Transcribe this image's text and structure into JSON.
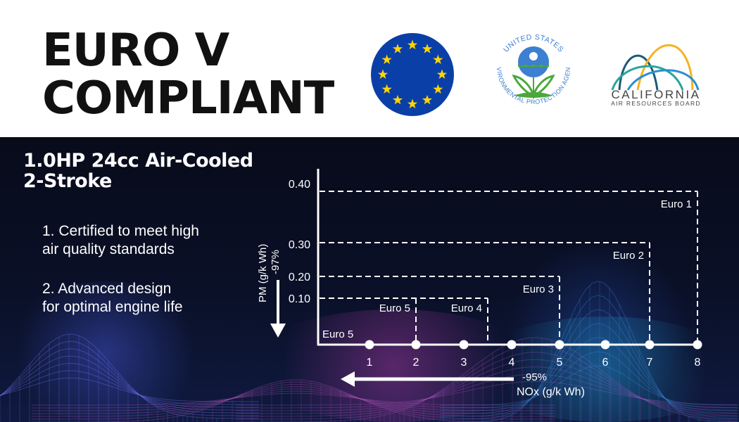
{
  "header": {
    "headline_line1": "EURO V",
    "headline_line2": "COMPLIANT",
    "logos": [
      {
        "name": "eu-flag-logo",
        "colors": {
          "blue": "#0b3fa8",
          "star": "#ffd400"
        }
      },
      {
        "name": "us-epa-logo",
        "text_top": "UNITED STATES",
        "text_bottom": "ENVIRONMENTAL PROTECTION AGENCY",
        "colors": {
          "blue": "#3d7fd1",
          "green": "#4aa83a"
        }
      },
      {
        "name": "carb-logo",
        "title": "CALIFORNIA",
        "subtitle": "AIR RESOURCES BOARD",
        "colors": {
          "navy": "#1b5a7a",
          "teal": "#2aa59a",
          "blue": "#2b8fd0",
          "gold": "#f5b323"
        }
      }
    ]
  },
  "product": {
    "title_line1": "1.0HP 24cc Air-Cooled",
    "title_line2": "2-Stroke",
    "points": [
      {
        "line1": "1. Certified to meet high",
        "line2": "air quality standards"
      },
      {
        "line1": "2. Advanced design",
        "line2": "for optimal engine life"
      }
    ]
  },
  "chart_data": {
    "type": "step-boxes",
    "ylabel": "PM (g/k Wh)",
    "ylabel_note": "-97%",
    "xlabel": "NOx (g/k Wh)",
    "xlabel_note": "-95%",
    "x_ticks": [
      "1",
      "2",
      "3",
      "4",
      "5",
      "6",
      "7",
      "8"
    ],
    "y_ticks": [
      "0.40",
      "0.30",
      "0.20",
      "0.10"
    ],
    "xlim": [
      0,
      8
    ],
    "ylim": [
      0,
      0.4
    ],
    "grid": false,
    "series": [
      {
        "name": "Euro 1",
        "nox": 8,
        "pm": 0.4
      },
      {
        "name": "Euro 2",
        "nox": 7,
        "pm": 0.3
      },
      {
        "name": "Euro 3",
        "nox": 5,
        "pm": 0.2
      },
      {
        "name": "Euro 4",
        "nox": 3.5,
        "pm": 0.1
      },
      {
        "name": "Euro 5",
        "nox": 2,
        "pm": 0.1
      }
    ],
    "corner_label": "Euro 5",
    "colors": {
      "lines": "#ffffff",
      "background": "#0a1028"
    }
  }
}
